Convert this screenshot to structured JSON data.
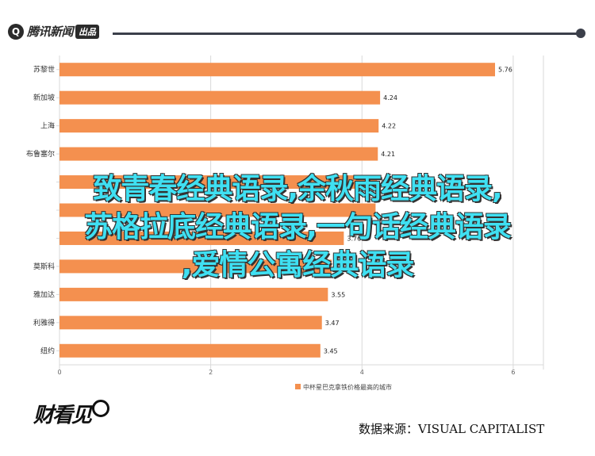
{
  "header": {
    "logo_mark": "Q",
    "logo_text": "腾讯新闻",
    "logo_badge": "出品"
  },
  "colors": {
    "bar": "#f4904f",
    "grid": "#d9d9d9",
    "overlay_text": "#3fe0f2"
  },
  "chart_data": {
    "type": "bar",
    "orientation": "horizontal",
    "categories": [
      "苏黎世",
      "新加坡",
      "上海",
      "布鲁塞尔",
      "",
      "",
      "",
      "莫斯科",
      "雅加达",
      "利雅得",
      "纽约"
    ],
    "values": [
      5.76,
      4.24,
      4.22,
      4.21,
      4.2,
      4.18,
      3.76,
      3.6,
      3.55,
      3.47,
      3.45
    ],
    "value_labels": [
      "5.76",
      "4.24",
      "4.22",
      "4.21",
      "4.20",
      "",
      "3.76",
      "",
      "3.55",
      "3.47",
      "3.45"
    ],
    "xlim": [
      0,
      6.4
    ],
    "xticks": [
      "0",
      "2",
      "4",
      "6"
    ],
    "legend": "中杯星巴克拿铁价格最高的城市",
    "grid": true
  },
  "overlay": {
    "line1": "致青春经典语录,余秋雨经典语录,",
    "line2": "苏格拉底经典语录,一句话经典语录",
    "line3": ",爱情公寓经典语录"
  },
  "footer": {
    "logo_text": "财看见",
    "source": "数据来源：VISUAL CAPITALIST"
  }
}
